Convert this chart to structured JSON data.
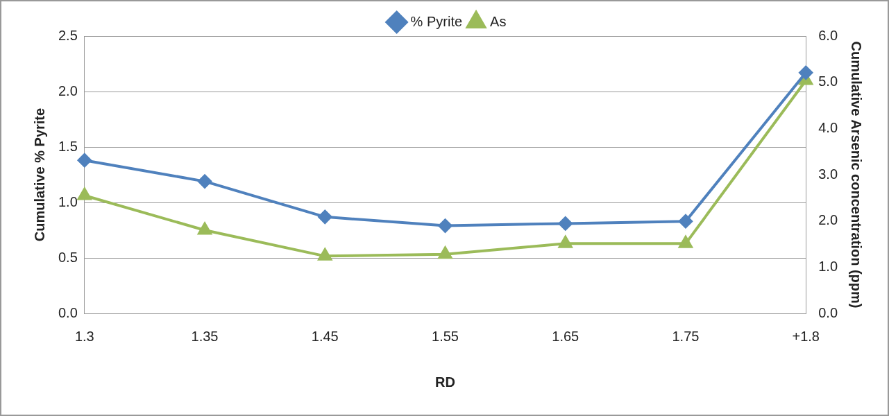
{
  "chart_data": {
    "type": "line",
    "xlabel": "RD",
    "ylabel": "Cumulative % Pyrite",
    "y2label": "Cumulative Arsenic concentration (ppm)",
    "categories": [
      "1.3",
      "1.35",
      "1.45",
      "1.55",
      "1.65",
      "1.75",
      "+1.8"
    ],
    "series": [
      {
        "name": "% Pyrite",
        "color": "#4f81bd",
        "marker": "diamond",
        "values": [
          1.38,
          1.19,
          0.87,
          0.79,
          0.81,
          0.83,
          2.17
        ]
      },
      {
        "name": "As",
        "color": "#9bbb59",
        "marker": "triangle",
        "axis": "y2",
        "values": [
          2.55,
          1.8,
          1.24,
          1.28,
          1.51,
          1.51,
          5.04
        ]
      }
    ],
    "ylim": [
      0,
      2.5
    ],
    "yticks": [
      {
        "value": 0,
        "label": "0.0"
      },
      {
        "value": 0.5,
        "label": "0.5"
      },
      {
        "value": 1,
        "label": "1.0"
      },
      {
        "value": 1.5,
        "label": "1.5"
      },
      {
        "value": 2,
        "label": "2.0"
      },
      {
        "value": 2.5,
        "label": "2.5"
      }
    ],
    "y2lim": [
      0,
      6
    ],
    "y2ticks": [
      {
        "value": 0,
        "label": "0.0"
      },
      {
        "value": 1,
        "label": "1.0"
      },
      {
        "value": 2,
        "label": "2.0"
      },
      {
        "value": 3,
        "label": "3.0"
      },
      {
        "value": 4,
        "label": "4.0"
      },
      {
        "value": 5,
        "label": "5.0"
      },
      {
        "value": 6,
        "label": "6.0"
      }
    ],
    "grid": "y",
    "legend": "top",
    "line_style": "solid"
  }
}
